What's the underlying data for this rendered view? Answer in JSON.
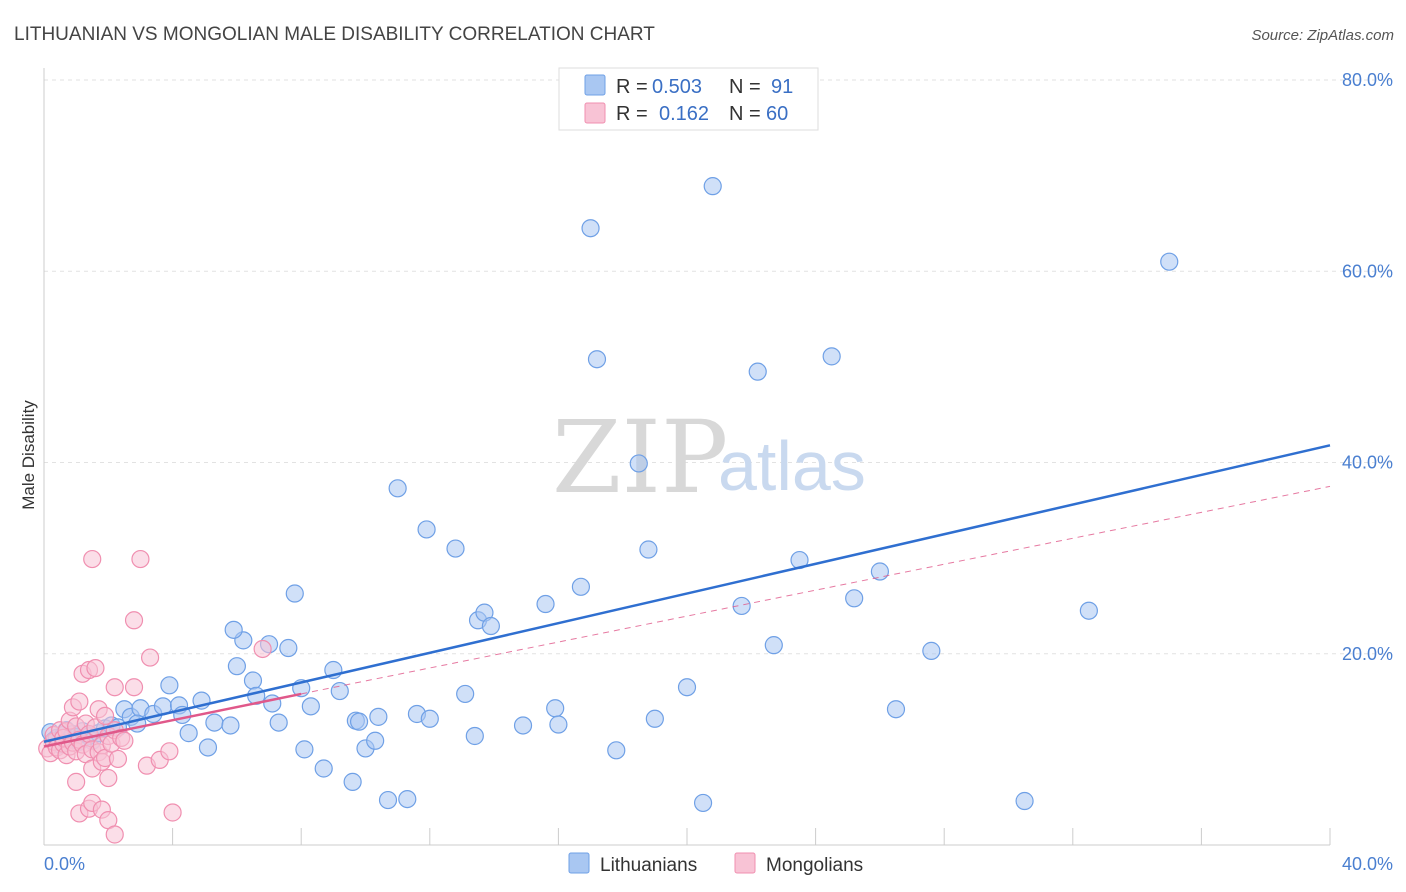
{
  "chart_data": {
    "type": "scatter",
    "title": "LITHUANIAN VS MONGOLIAN MALE DISABILITY CORRELATION CHART",
    "source": "Source: ZipAtlas.com",
    "ylabel": "Male Disability",
    "xlim": [
      0,
      40
    ],
    "ylim": [
      0,
      80
    ],
    "x_tick_labels": [
      "0.0%",
      "40.0%"
    ],
    "y_ticks": [
      20,
      40,
      60,
      80
    ],
    "y_tick_labels": [
      "20.0%",
      "40.0%",
      "60.0%",
      "80.0%"
    ],
    "grid": true,
    "watermark": {
      "zip": "ZIP",
      "atlas": "atlas"
    },
    "legend": {
      "entries": [
        {
          "r_label": "R =",
          "r_value": "0.503",
          "n_label": "N =",
          "n_value": "91"
        },
        {
          "r_label": "R =",
          "r_value": "0.162",
          "n_label": "N =",
          "n_value": "60"
        }
      ]
    },
    "series": [
      {
        "name": "Lithuanians",
        "color": "#6fa0e6",
        "fill": "#a9c7f2",
        "line_color": "#2f6fd0",
        "trend": {
          "x0": 0.0,
          "y0": 10.8,
          "x1": 40.0,
          "y1": 41.8,
          "style": "solid"
        },
        "points": [
          [
            0.2,
            11.8
          ],
          [
            0.3,
            10.9
          ],
          [
            0.4,
            11.2
          ],
          [
            0.5,
            10.5
          ],
          [
            0.6,
            11.5
          ],
          [
            0.7,
            12.0
          ],
          [
            0.8,
            11.0
          ],
          [
            0.9,
            11.6
          ],
          [
            1.0,
            11.3
          ],
          [
            1.1,
            10.8
          ],
          [
            1.2,
            11.9
          ],
          [
            1.4,
            11.4
          ],
          [
            1.5,
            10.9
          ],
          [
            1.7,
            11.7
          ],
          [
            1.9,
            12.2
          ],
          [
            2.1,
            12.5
          ],
          [
            2.3,
            12.3
          ],
          [
            2.5,
            14.2
          ],
          [
            2.7,
            13.4
          ],
          [
            3.0,
            14.3
          ],
          [
            3.4,
            13.7
          ],
          [
            3.7,
            14.5
          ],
          [
            4.2,
            14.6
          ],
          [
            4.3,
            13.6
          ],
          [
            3.9,
            16.7
          ],
          [
            4.5,
            11.7
          ],
          [
            4.9,
            15.1
          ],
          [
            5.1,
            10.2
          ],
          [
            5.3,
            12.8
          ],
          [
            5.8,
            12.5
          ],
          [
            6.0,
            18.7
          ],
          [
            6.5,
            17.2
          ],
          [
            6.6,
            15.6
          ],
          [
            7.1,
            14.8
          ],
          [
            7.3,
            12.8
          ],
          [
            7.6,
            20.6
          ],
          [
            7.8,
            26.3
          ],
          [
            8.0,
            16.4
          ],
          [
            8.1,
            10.0
          ],
          [
            8.3,
            14.5
          ],
          [
            8.7,
            8.0
          ],
          [
            9.0,
            18.3
          ],
          [
            9.2,
            16.1
          ],
          [
            9.6,
            6.6
          ],
          [
            9.7,
            13.0
          ],
          [
            9.8,
            12.9
          ],
          [
            10.0,
            10.1
          ],
          [
            10.3,
            10.9
          ],
          [
            10.4,
            13.4
          ],
          [
            10.7,
            4.7
          ],
          [
            11.0,
            37.3
          ],
          [
            11.3,
            4.8
          ],
          [
            11.6,
            13.7
          ],
          [
            11.9,
            33.0
          ],
          [
            12.0,
            13.2
          ],
          [
            12.8,
            31.0
          ],
          [
            13.1,
            15.8
          ],
          [
            13.4,
            11.4
          ],
          [
            13.5,
            23.5
          ],
          [
            13.7,
            24.3
          ],
          [
            13.9,
            22.9
          ],
          [
            14.9,
            12.5
          ],
          [
            15.6,
            25.2
          ],
          [
            15.9,
            14.3
          ],
          [
            16.0,
            12.6
          ],
          [
            17.0,
            64.5
          ],
          [
            16.7,
            27.0
          ],
          [
            17.2,
            50.8
          ],
          [
            17.8,
            9.9
          ],
          [
            18.5,
            39.9
          ],
          [
            18.8,
            30.9
          ],
          [
            19.0,
            13.2
          ],
          [
            20.0,
            16.5
          ],
          [
            20.5,
            4.4
          ],
          [
            20.8,
            68.9
          ],
          [
            21.7,
            25.0
          ],
          [
            22.2,
            49.5
          ],
          [
            22.7,
            20.9
          ],
          [
            23.5,
            29.8
          ],
          [
            24.5,
            51.1
          ],
          [
            25.2,
            25.8
          ],
          [
            26.0,
            28.6
          ],
          [
            26.5,
            14.2
          ],
          [
            27.6,
            20.3
          ],
          [
            30.5,
            4.6
          ],
          [
            32.5,
            24.5
          ],
          [
            35.0,
            61.0
          ],
          [
            6.2,
            21.4
          ],
          [
            5.9,
            22.5
          ],
          [
            7.0,
            21.0
          ],
          [
            2.9,
            12.7
          ]
        ]
      },
      {
        "name": "Mongolians",
        "color": "#f08fb0",
        "fill": "#f8c3d5",
        "line_color": "#e0588a",
        "trend": {
          "x0": 0.0,
          "y0": 10.3,
          "x1": 8.0,
          "y1": 15.8,
          "style": "solid"
        },
        "trend_ext": {
          "x0": 8.0,
          "y0": 15.8,
          "x1": 40.0,
          "y1": 37.5,
          "style": "dashed"
        },
        "points": [
          [
            0.1,
            10.1
          ],
          [
            0.2,
            9.6
          ],
          [
            0.3,
            10.8
          ],
          [
            0.3,
            11.5
          ],
          [
            0.4,
            10.2
          ],
          [
            0.5,
            9.9
          ],
          [
            0.5,
            12.0
          ],
          [
            0.6,
            10.6
          ],
          [
            0.6,
            11.2
          ],
          [
            0.7,
            9.4
          ],
          [
            0.7,
            11.9
          ],
          [
            0.8,
            10.3
          ],
          [
            0.8,
            13.0
          ],
          [
            0.9,
            10.7
          ],
          [
            0.9,
            14.4
          ],
          [
            1.0,
            9.8
          ],
          [
            1.0,
            12.4
          ],
          [
            1.1,
            15.0
          ],
          [
            1.1,
            11.0
          ],
          [
            1.2,
            17.9
          ],
          [
            1.2,
            10.5
          ],
          [
            1.3,
            12.7
          ],
          [
            1.3,
            9.5
          ],
          [
            1.4,
            18.3
          ],
          [
            1.4,
            11.6
          ],
          [
            1.5,
            10.0
          ],
          [
            1.5,
            8.0
          ],
          [
            1.6,
            18.5
          ],
          [
            1.6,
            12.3
          ],
          [
            1.7,
            9.7
          ],
          [
            1.7,
            14.2
          ],
          [
            1.8,
            10.4
          ],
          [
            1.8,
            8.7
          ],
          [
            1.9,
            9.1
          ],
          [
            1.9,
            13.5
          ],
          [
            2.0,
            11.4
          ],
          [
            2.0,
            7.0
          ],
          [
            2.1,
            10.6
          ],
          [
            2.2,
            16.5
          ],
          [
            2.2,
            12.0
          ],
          [
            2.3,
            9.0
          ],
          [
            2.4,
            11.2
          ],
          [
            2.5,
            10.9
          ],
          [
            1.0,
            6.6
          ],
          [
            1.1,
            3.3
          ],
          [
            1.4,
            3.8
          ],
          [
            1.5,
            4.4
          ],
          [
            1.8,
            3.7
          ],
          [
            2.0,
            2.6
          ],
          [
            2.2,
            1.1
          ],
          [
            1.5,
            29.9
          ],
          [
            2.8,
            23.5
          ],
          [
            2.8,
            16.5
          ],
          [
            3.0,
            29.9
          ],
          [
            3.2,
            8.3
          ],
          [
            3.3,
            19.6
          ],
          [
            3.6,
            8.9
          ],
          [
            3.9,
            9.8
          ],
          [
            4.0,
            3.4
          ],
          [
            6.8,
            20.5
          ]
        ]
      }
    ]
  }
}
